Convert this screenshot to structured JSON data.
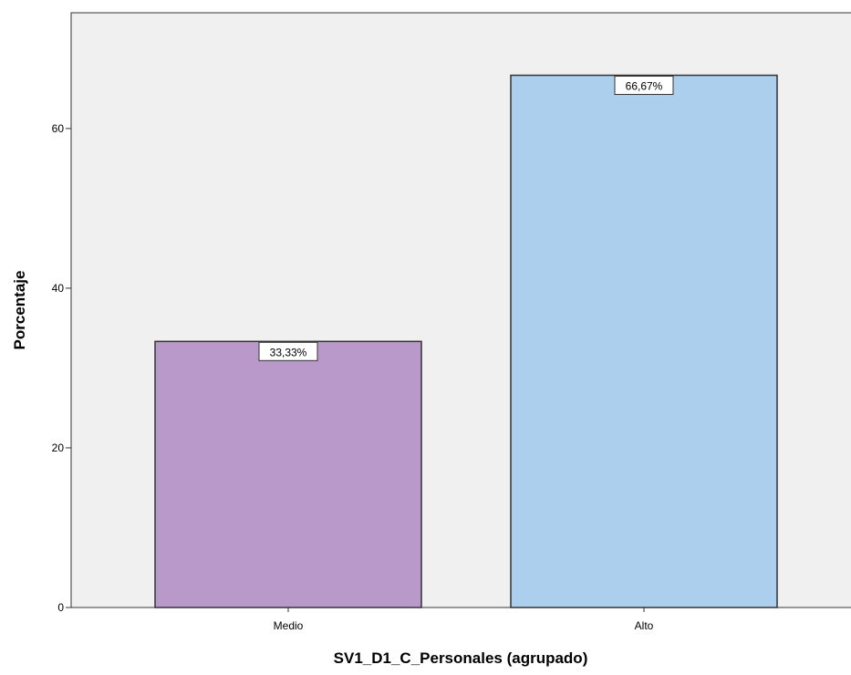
{
  "chart_data": {
    "type": "bar",
    "title": "",
    "xlabel": "SV1_D1_C_Personales (agrupado)",
    "ylabel": "Porcentaje",
    "categories": [
      "Medio",
      "Alto"
    ],
    "values": [
      33.33,
      66.67
    ],
    "data_labels": [
      "33,33%",
      "66,67%"
    ],
    "colors": [
      "#b899c9",
      "#accfed"
    ],
    "ylim": [
      0,
      74.5
    ],
    "yticks": [
      0,
      20,
      40,
      60
    ],
    "grid": false,
    "legend": "none",
    "background": "#f0f0f0"
  }
}
